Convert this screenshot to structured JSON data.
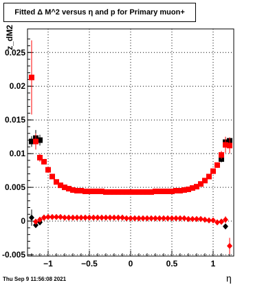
{
  "chart_data": {
    "type": "scatter",
    "title": "Fitted Δ M^2 versus η and p for Primary muon+",
    "xlabel": "η",
    "ylabel": "z_dM2",
    "xlim": [
      -1.25,
      1.25
    ],
    "ylim": [
      -0.0052,
      0.0285
    ],
    "x_ticks": [
      -1,
      -0.5,
      0,
      0.5,
      1
    ],
    "x_tick_labels": [
      "−1",
      "−0.5",
      "0",
      "0.5",
      "1"
    ],
    "y_ticks": [
      -0.005,
      0,
      0.005,
      0.01,
      0.015,
      0.02,
      0.025
    ],
    "y_tick_labels": [
      "-0.005",
      "0",
      "0.005",
      "0.01",
      "0.015",
      "0.02",
      "0.025"
    ],
    "grid": true,
    "colors": {
      "black_series": "#000000",
      "red_series": "#ff0000"
    },
    "series": [
      {
        "marker": "square",
        "color": "#000000",
        "x": [
          -1.2,
          -1.15,
          -1.1,
          1.1,
          1.15,
          1.2
        ],
        "y": [
          0.0118,
          0.0123,
          0.012,
          0.0092,
          0.0117,
          0.0119
        ],
        "err": [
          0.0008,
          0.0012,
          0.0008,
          0.0005,
          0.0005,
          0.0005
        ]
      },
      {
        "marker": "diamond",
        "color": "#000000",
        "x": [
          -1.2,
          -1.15,
          -1.1,
          -1.05,
          1.1,
          1.15
        ],
        "y": [
          0.0005,
          -0.0006,
          -0.0002,
          0.0005,
          -0.0001,
          -0.0008
        ],
        "err": [
          0.0012,
          0.0004,
          0.0004,
          0.0002,
          0.0003,
          0.0003
        ]
      },
      {
        "marker": "square",
        "color": "#ff0000",
        "x": [
          -1.2,
          -1.15,
          -1.1,
          -1.05,
          -1.0,
          -0.95,
          -0.9,
          -0.85,
          -0.8,
          -0.75,
          -0.7,
          -0.65,
          -0.6,
          -0.55,
          -0.5,
          -0.45,
          -0.4,
          -0.35,
          -0.3,
          -0.25,
          -0.2,
          -0.15,
          -0.1,
          -0.05,
          0.0,
          0.05,
          0.1,
          0.15,
          0.2,
          0.25,
          0.3,
          0.35,
          0.4,
          0.45,
          0.5,
          0.55,
          0.6,
          0.65,
          0.7,
          0.75,
          0.8,
          0.85,
          0.9,
          0.95,
          1.0,
          1.05,
          1.1,
          1.15,
          1.2
        ],
        "y": [
          0.0213,
          0.0118,
          0.0094,
          0.0088,
          0.0076,
          0.0066,
          0.0058,
          0.0053,
          0.005,
          0.0048,
          0.0046,
          0.0045,
          0.0045,
          0.0044,
          0.0044,
          0.0044,
          0.0044,
          0.0044,
          0.0043,
          0.0043,
          0.0043,
          0.0043,
          0.0043,
          0.0043,
          0.0043,
          0.0043,
          0.0043,
          0.0043,
          0.0043,
          0.0043,
          0.0044,
          0.0044,
          0.0044,
          0.0044,
          0.0044,
          0.0045,
          0.0045,
          0.0046,
          0.0047,
          0.0049,
          0.0051,
          0.0055,
          0.006,
          0.0066,
          0.0074,
          0.0083,
          0.0098,
          0.0113,
          0.0112
        ],
        "err": [
          0.0055,
          0.0012,
          0.0006,
          0.0004,
          0.0003,
          0.0002,
          0.0002,
          0.0001,
          0.0001,
          0.0001,
          0.0001,
          0.0001,
          0.0001,
          0.0001,
          0.0001,
          0.0001,
          0.0001,
          0.0001,
          0.0001,
          0.0001,
          0.0001,
          0.0001,
          0.0001,
          0.0001,
          0.0001,
          0.0001,
          0.0001,
          0.0001,
          0.0001,
          0.0001,
          0.0001,
          0.0001,
          0.0001,
          0.0001,
          0.0001,
          0.0001,
          0.0001,
          0.0001,
          0.0001,
          0.0001,
          0.0001,
          0.0001,
          0.0002,
          0.0002,
          0.0003,
          0.0004,
          0.0006,
          0.0012,
          0.0012
        ]
      },
      {
        "marker": "diamond",
        "color": "#ff0000",
        "x": [
          -1.15,
          -1.1,
          -1.05,
          -1.0,
          -0.95,
          -0.9,
          -0.85,
          -0.8,
          -0.75,
          -0.7,
          -0.65,
          -0.6,
          -0.55,
          -0.5,
          -0.45,
          -0.4,
          -0.35,
          -0.3,
          -0.25,
          -0.2,
          -0.15,
          -0.1,
          -0.05,
          0.0,
          0.05,
          0.1,
          0.15,
          0.2,
          0.25,
          0.3,
          0.35,
          0.4,
          0.45,
          0.5,
          0.55,
          0.6,
          0.65,
          0.7,
          0.75,
          0.8,
          0.85,
          0.9,
          0.95,
          1.0,
          1.05,
          1.1,
          1.15,
          1.2
        ],
        "y": [
          -0.0001,
          0.0002,
          0.0005,
          0.0006,
          0.0006,
          0.0006,
          0.0006,
          0.0005,
          0.0005,
          0.0005,
          0.0005,
          0.0005,
          0.0005,
          0.0005,
          0.0005,
          0.0005,
          0.0005,
          0.0005,
          0.0005,
          0.0005,
          0.0005,
          0.0005,
          0.0004,
          0.0004,
          0.0004,
          0.0004,
          0.0004,
          0.0004,
          0.0004,
          0.0004,
          0.0004,
          0.0004,
          0.0004,
          0.0004,
          0.0004,
          0.0004,
          0.0004,
          0.0003,
          0.0003,
          0.0003,
          0.0003,
          0.0002,
          0.0001,
          0.0001,
          -0.0002,
          -0.0001,
          0.0002,
          -0.0037
        ],
        "err": [
          0.0004,
          0.0003,
          0.0002,
          0.0001,
          0.0001,
          0.0001,
          0.0001,
          0.0001,
          0.0001,
          0.0001,
          0.0001,
          0.0001,
          0.0001,
          0.0001,
          0.0001,
          0.0001,
          0.0001,
          0.0001,
          0.0001,
          0.0001,
          0.0001,
          0.0001,
          0.0001,
          0.0001,
          0.0001,
          0.0001,
          0.0001,
          0.0001,
          0.0001,
          0.0001,
          0.0001,
          0.0001,
          0.0001,
          0.0001,
          0.0001,
          0.0001,
          0.0001,
          0.0001,
          0.0001,
          0.0001,
          0.0001,
          0.0001,
          0.0001,
          0.0001,
          0.0002,
          0.0002,
          0.0005,
          0.0012
        ]
      }
    ]
  },
  "footer": {
    "timestamp": "Thu Sep  9 11:56:08 2021"
  }
}
